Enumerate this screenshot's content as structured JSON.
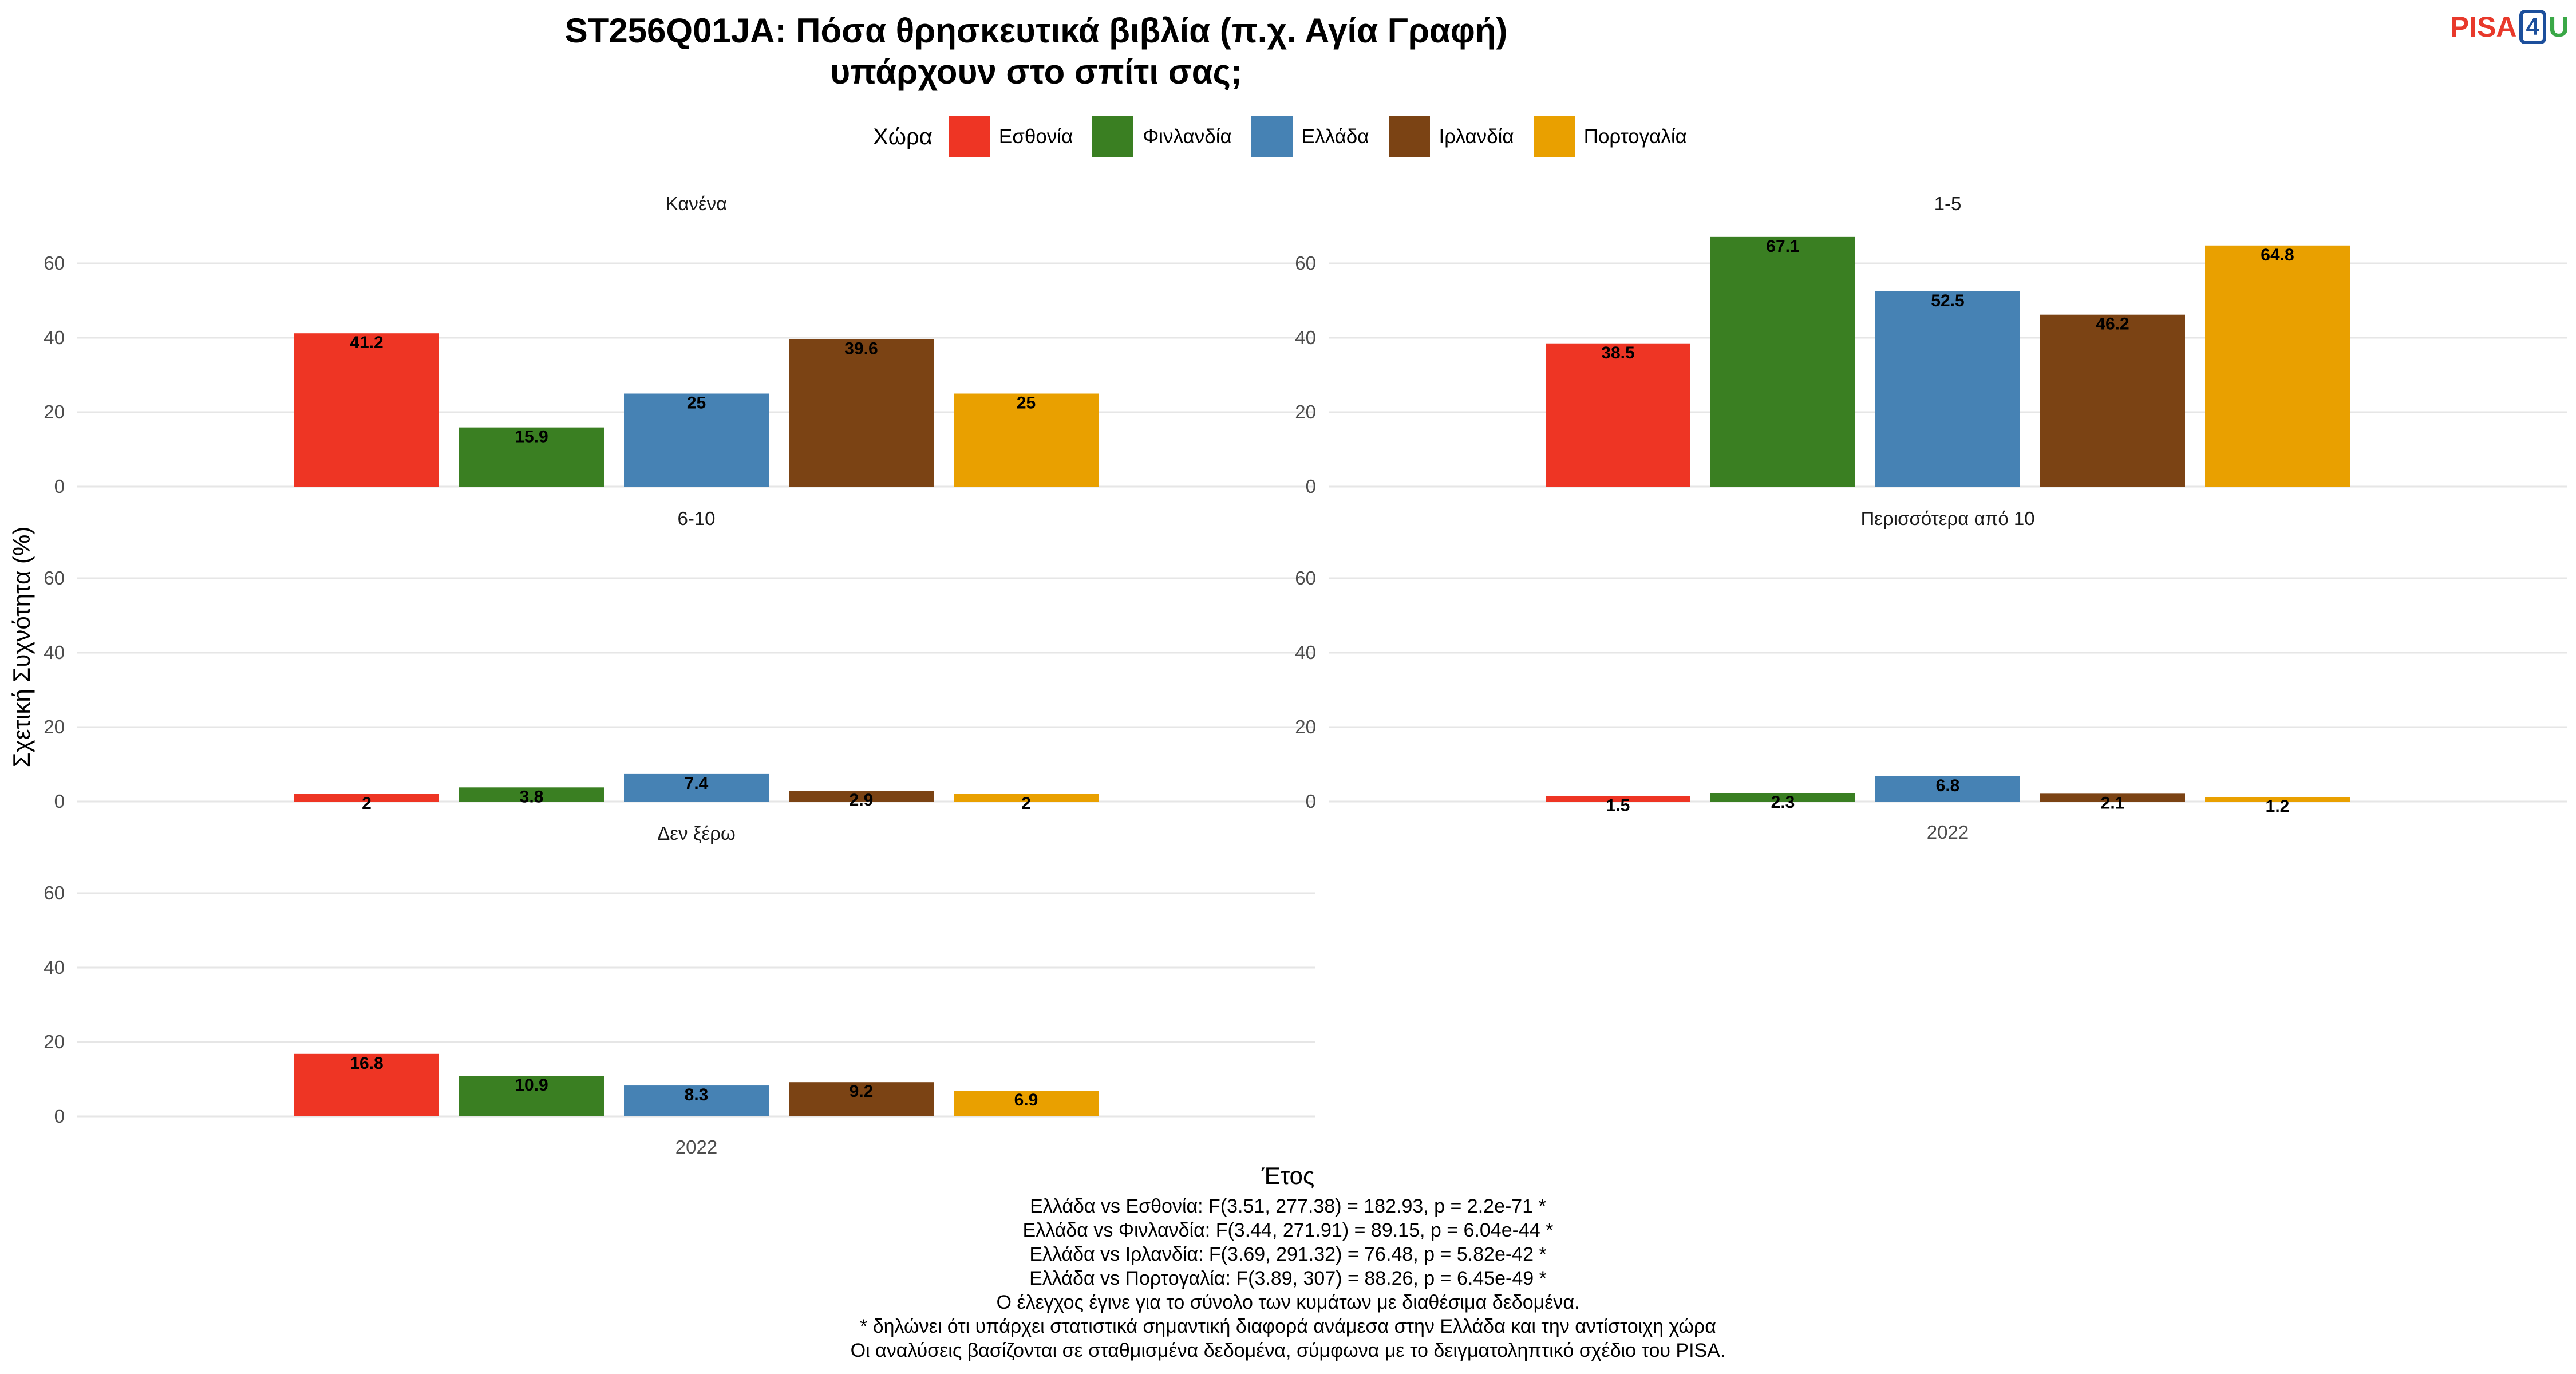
{
  "title": "ST256Q01JA: Πόσα θρησκευτικά βιβλία (π.χ. Αγία Γραφή) υπάρχουν στο σπίτι σας;",
  "logo": {
    "part1": "PISA",
    "part2": "4",
    "part3": "U"
  },
  "chart_data": {
    "type": "bar",
    "title": "ST256Q01JA: Πόσα θρησκευτικά βιβλία (π.χ. Αγία Γραφή) υπάρχουν στο σπίτι σας;",
    "xlabel": "Έτος",
    "ylabel": "Σχετική Συχνότητα (%)",
    "ylim": [
      0,
      70
    ],
    "yticks": [
      0,
      20,
      40,
      60
    ],
    "grid": true,
    "legend": {
      "title": "Χώρα",
      "placement": "top"
    },
    "categories": [
      "2022"
    ],
    "series_names": [
      "Εσθονία",
      "Φινλανδία",
      "Ελλάδα",
      "Ιρλανδία",
      "Πορτογαλία"
    ],
    "series_colors": [
      "#ee3524",
      "#3a7f22",
      "#4682b4",
      "#7b4314",
      "#e9a000"
    ],
    "facets": [
      {
        "label": "Κανένα",
        "values": [
          41.2,
          15.9,
          25,
          39.6,
          25
        ],
        "value_labels": [
          "41.2",
          "15.9",
          "25",
          "39.6",
          "25"
        ]
      },
      {
        "label": "1-5",
        "values": [
          38.5,
          67.1,
          52.5,
          46.2,
          64.8
        ],
        "value_labels": [
          "38.5",
          "67.1",
          "52.5",
          "46.2",
          "64.8"
        ]
      },
      {
        "label": "6-10",
        "values": [
          2,
          3.8,
          7.4,
          2.9,
          2
        ],
        "value_labels": [
          "2",
          "3.8",
          "7.4",
          "2.9",
          "2"
        ]
      },
      {
        "label": "Περισσότερα από 10",
        "values": [
          1.5,
          2.3,
          6.8,
          2.1,
          1.2
        ],
        "value_labels": [
          "1.5",
          "2.3",
          "6.8",
          "2.1",
          "1.2"
        ]
      },
      {
        "label": "Δεν ξέρω",
        "values": [
          16.8,
          10.9,
          8.3,
          9.2,
          6.9
        ],
        "value_labels": [
          "16.8",
          "10.9",
          "8.3",
          "9.2",
          "6.9"
        ]
      }
    ]
  },
  "notes": [
    "Ελλάδα vs Εσθονία: F(3.51, 277.38) = 182.93, p = 2.2e-71 *",
    "Ελλάδα vs Φινλανδία: F(3.44, 271.91) = 89.15, p = 6.04e-44 *",
    "Ελλάδα vs Ιρλανδία: F(3.69, 291.32) = 76.48, p = 5.82e-42 *",
    "Ελλάδα vs Πορτογαλία: F(3.89, 307) = 88.26, p = 6.45e-49 *",
    "Ο έλεγχος έγινε για το σύνολο των κυμάτων με διαθέσιμα δεδομένα.",
    "* δηλώνει ότι υπάρχει στατιστικά σημαντική διαφορά ανάμεσα στην Ελλάδα και την αντίστοιχη χώρα",
    "Οι αναλύσεις βασίζονται σε σταθμισμένα δεδομένα, σύμφωνα με το δειγματοληπτικό σχέδιο του PISA."
  ]
}
